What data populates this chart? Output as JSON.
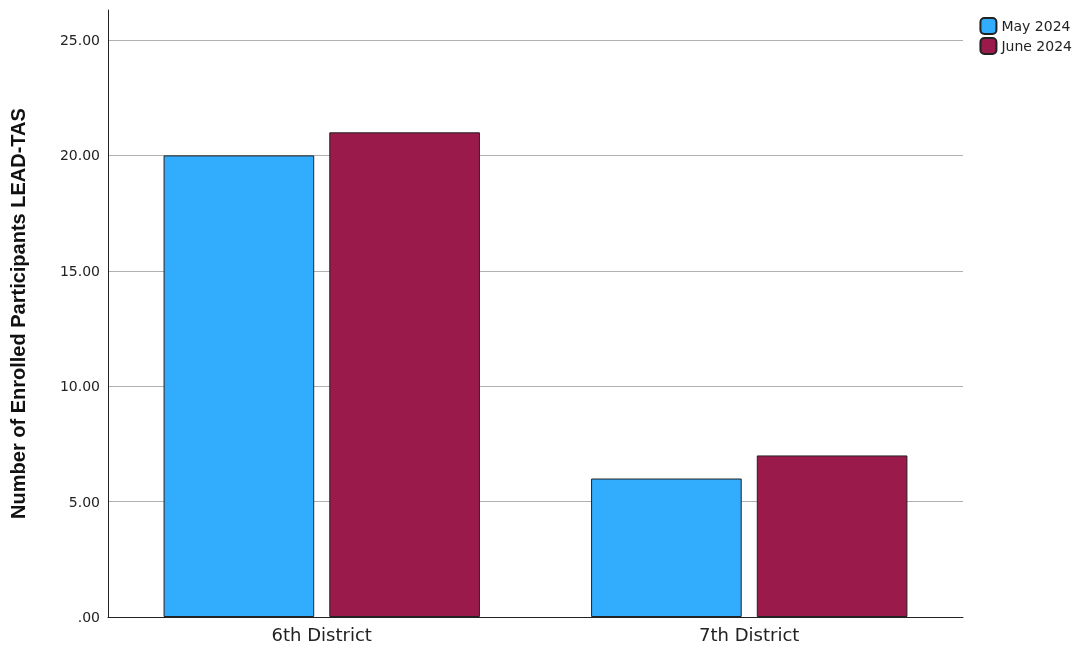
{
  "chart_data": {
    "type": "bar",
    "ylabel": "Number of Enrolled Participants LEAD-TAS",
    "categories": [
      "6th District",
      "7th District"
    ],
    "series": [
      {
        "name": "May 2024",
        "color": "#32acfd",
        "values": [
          20,
          6
        ]
      },
      {
        "name": "June 2024",
        "color": "#9b1a4c",
        "values": [
          21,
          7
        ]
      }
    ],
    "ylim": [
      0,
      26.3
    ],
    "yticks": [
      {
        "value": 0,
        "label": ".00"
      },
      {
        "value": 5,
        "label": "5.00"
      },
      {
        "value": 10,
        "label": "10.00"
      },
      {
        "value": 15,
        "label": "15.00"
      },
      {
        "value": 20,
        "label": "20.00"
      },
      {
        "value": 25,
        "label": "25.00"
      }
    ],
    "grid": "y",
    "legend": "top right"
  }
}
